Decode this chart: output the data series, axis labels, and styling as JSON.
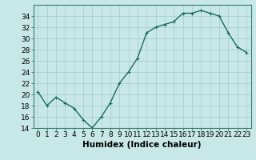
{
  "x": [
    0,
    1,
    2,
    3,
    4,
    5,
    6,
    7,
    8,
    9,
    10,
    11,
    12,
    13,
    14,
    15,
    16,
    17,
    18,
    19,
    20,
    21,
    22,
    23
  ],
  "y": [
    20.5,
    18.0,
    19.5,
    18.5,
    17.5,
    15.5,
    14.0,
    16.0,
    18.5,
    22.0,
    24.0,
    26.5,
    31.0,
    32.0,
    32.5,
    33.0,
    34.5,
    34.5,
    35.0,
    34.5,
    34.0,
    31.0,
    28.5,
    27.5
  ],
  "line_color": "#1a6b5a",
  "marker": "+",
  "marker_size": 3,
  "background_color": "#c8e8e8",
  "grid_color": "#aacece",
  "xlabel": "Humidex (Indice chaleur)",
  "ylim": [
    14,
    36
  ],
  "xlim": [
    -0.5,
    23.5
  ],
  "yticks": [
    14,
    16,
    18,
    20,
    22,
    24,
    26,
    28,
    30,
    32,
    34
  ],
  "xtick_labels": [
    "0",
    "1",
    "2",
    "3",
    "4",
    "5",
    "6",
    "7",
    "8",
    "9",
    "10",
    "11",
    "12",
    "13",
    "14",
    "15",
    "16",
    "17",
    "18",
    "19",
    "20",
    "21",
    "22",
    "23"
  ],
  "xlabel_fontsize": 7.5,
  "tick_fontsize": 6.5,
  "line_width": 1.0
}
